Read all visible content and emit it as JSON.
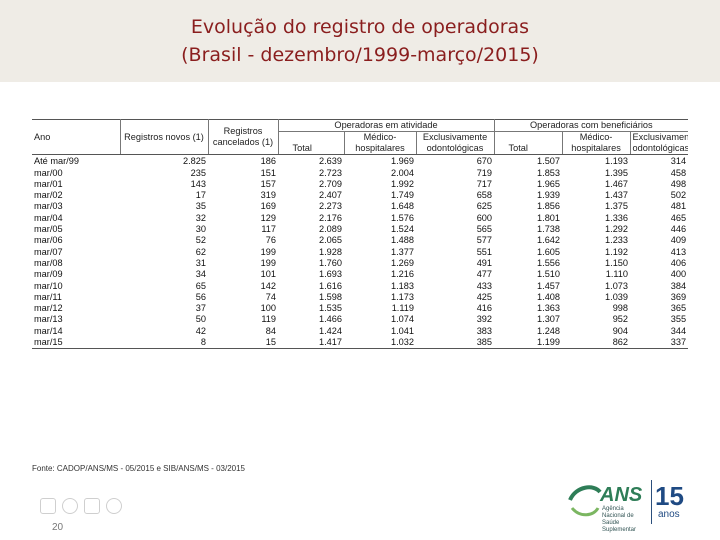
{
  "header": {
    "title_line1": "Evolução do registro de operadoras",
    "title_line2": "(Brasil - dezembro/1999-março/2015)"
  },
  "table": {
    "col_ano": "Ano",
    "col_novos": "Registros novos (1)",
    "col_cancelados": "Registros cancelados (1)",
    "group_atividade": "Operadoras em atividade",
    "group_beneficiarios": "Operadoras com beneficiários",
    "sub_total": "Total",
    "sub_medico": "Médico-hospitalares",
    "sub_odonto": "Exclusivamente odontológicas",
    "rows": [
      [
        "Até mar/99",
        "2.825",
        "186",
        "2.639",
        "1.969",
        "670",
        "1.507",
        "1.193",
        "314"
      ],
      [
        "mar/00",
        "235",
        "151",
        "2.723",
        "2.004",
        "719",
        "1.853",
        "1.395",
        "458"
      ],
      [
        "mar/01",
        "143",
        "157",
        "2.709",
        "1.992",
        "717",
        "1.965",
        "1.467",
        "498"
      ],
      [
        "mar/02",
        "17",
        "319",
        "2.407",
        "1.749",
        "658",
        "1.939",
        "1.437",
        "502"
      ],
      [
        "mar/03",
        "35",
        "169",
        "2.273",
        "1.648",
        "625",
        "1.856",
        "1.375",
        "481"
      ],
      [
        "mar/04",
        "32",
        "129",
        "2.176",
        "1.576",
        "600",
        "1.801",
        "1.336",
        "465"
      ],
      [
        "mar/05",
        "30",
        "117",
        "2.089",
        "1.524",
        "565",
        "1.738",
        "1.292",
        "446"
      ],
      [
        "mar/06",
        "52",
        "76",
        "2.065",
        "1.488",
        "577",
        "1.642",
        "1.233",
        "409"
      ],
      [
        "mar/07",
        "62",
        "199",
        "1.928",
        "1.377",
        "551",
        "1.605",
        "1.192",
        "413"
      ],
      [
        "mar/08",
        "31",
        "199",
        "1.760",
        "1.269",
        "491",
        "1.556",
        "1.150",
        "406"
      ],
      [
        "mar/09",
        "34",
        "101",
        "1.693",
        "1.216",
        "477",
        "1.510",
        "1.110",
        "400"
      ],
      [
        "mar/10",
        "65",
        "142",
        "1.616",
        "1.183",
        "433",
        "1.457",
        "1.073",
        "384"
      ],
      [
        "mar/11",
        "56",
        "74",
        "1.598",
        "1.173",
        "425",
        "1.408",
        "1.039",
        "369"
      ],
      [
        "mar/12",
        "37",
        "100",
        "1.535",
        "1.119",
        "416",
        "1.363",
        "998",
        "365"
      ],
      [
        "mar/13",
        "50",
        "119",
        "1.466",
        "1.074",
        "392",
        "1.307",
        "952",
        "355"
      ],
      [
        "mar/14",
        "42",
        "84",
        "1.424",
        "1.041",
        "383",
        "1.248",
        "904",
        "344"
      ],
      [
        "mar/15",
        "8",
        "15",
        "1.417",
        "1.032",
        "385",
        "1.199",
        "862",
        "337"
      ]
    ]
  },
  "source": "Fonte: CADOP/ANS/MS - 05/2015 e SIB/ANS/MS - 03/2015",
  "page_number": "20",
  "logo": {
    "brand": "ANS",
    "subtitle": "Agência Nacional de Saúde Suplementar",
    "years_number": "15",
    "years_label": "anos"
  },
  "colors": {
    "title": "#8a1e1e",
    "title_band": "#efece6",
    "logo_green": "#2e7d57",
    "logo_blue": "#1f4a83"
  }
}
